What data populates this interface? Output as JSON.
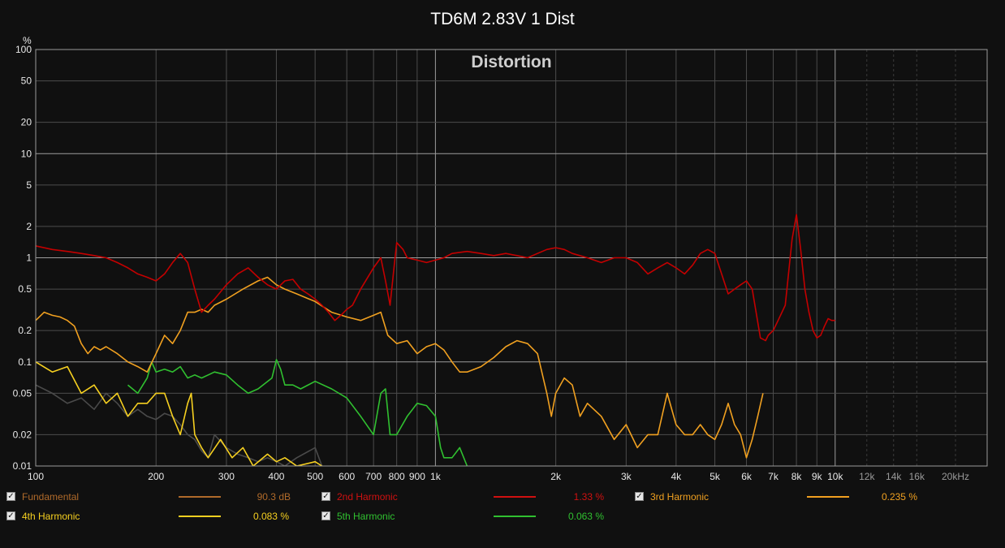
{
  "title": "TD6M 2.83V 1 Dist",
  "panel_label": "Distortion",
  "chart_data": {
    "type": "line",
    "title": "TD6M 2.83V 1 Dist",
    "ylabel": "%",
    "xscale": "log",
    "yscale": "log",
    "xlim": [
      100,
      24000
    ],
    "ylim": [
      0.01,
      100
    ],
    "grid": true,
    "y_ticks": [
      {
        "value": 100,
        "label": "100"
      },
      {
        "value": 50,
        "label": "50"
      },
      {
        "value": 20,
        "label": "20"
      },
      {
        "value": 10,
        "label": "10"
      },
      {
        "value": 5,
        "label": "5"
      },
      {
        "value": 2,
        "label": "2"
      },
      {
        "value": 1,
        "label": "1"
      },
      {
        "value": 0.5,
        "label": "0.5"
      },
      {
        "value": 0.2,
        "label": "0.2"
      },
      {
        "value": 0.1,
        "label": "0.1"
      },
      {
        "value": 0.05,
        "label": "0.05"
      },
      {
        "value": 0.02,
        "label": "0.02"
      },
      {
        "value": 0.01,
        "label": "0.01"
      }
    ],
    "x_ticks": [
      {
        "value": 100,
        "label": "100"
      },
      {
        "value": 200,
        "label": "200"
      },
      {
        "value": 300,
        "label": "300"
      },
      {
        "value": 400,
        "label": "400"
      },
      {
        "value": 500,
        "label": "500"
      },
      {
        "value": 600,
        "label": "600"
      },
      {
        "value": 700,
        "label": "700"
      },
      {
        "value": 800,
        "label": "800"
      },
      {
        "value": 900,
        "label": "900"
      },
      {
        "value": 1000,
        "label": "1k"
      },
      {
        "value": 2000,
        "label": "2k"
      },
      {
        "value": 3000,
        "label": "3k"
      },
      {
        "value": 4000,
        "label": "4k"
      },
      {
        "value": 5000,
        "label": "5k"
      },
      {
        "value": 6000,
        "label": "6k"
      },
      {
        "value": 7000,
        "label": "7k"
      },
      {
        "value": 8000,
        "label": "8k"
      },
      {
        "value": 9000,
        "label": "9k"
      },
      {
        "value": 10000,
        "label": "10k"
      },
      {
        "value": 12000,
        "label": "12k"
      },
      {
        "value": 14000,
        "label": "14k"
      },
      {
        "value": 16000,
        "label": "16k"
      },
      {
        "value": 20000,
        "label": "20kHz"
      }
    ],
    "series": [
      {
        "name": "2nd Harmonic",
        "color": "#c40000",
        "x": [
          100,
          110,
          120,
          130,
          140,
          150,
          160,
          170,
          180,
          190,
          200,
          210,
          220,
          230,
          240,
          250,
          260,
          270,
          280,
          300,
          320,
          340,
          360,
          380,
          400,
          420,
          440,
          460,
          480,
          500,
          520,
          540,
          560,
          580,
          600,
          620,
          650,
          700,
          730,
          750,
          770,
          790,
          800,
          830,
          850,
          900,
          950,
          1000,
          1050,
          1100,
          1200,
          1300,
          1400,
          1500,
          1600,
          1700,
          1800,
          1900,
          2000,
          2100,
          2200,
          2400,
          2600,
          2800,
          3000,
          3200,
          3400,
          3600,
          3800,
          4000,
          4200,
          4400,
          4600,
          4800,
          5000,
          5200,
          5400,
          5600,
          5800,
          6000,
          6200,
          6500,
          6700,
          6800,
          7000,
          7200,
          7500,
          7800,
          8000,
          8200,
          8400,
          8600,
          8800,
          9000,
          9200,
          9400,
          9600,
          9800,
          10000
        ],
        "y": [
          1.3,
          1.2,
          1.15,
          1.1,
          1.05,
          1.0,
          0.9,
          0.8,
          0.7,
          0.65,
          0.6,
          0.7,
          0.9,
          1.1,
          0.9,
          0.5,
          0.3,
          0.35,
          0.4,
          0.55,
          0.7,
          0.8,
          0.65,
          0.55,
          0.5,
          0.6,
          0.62,
          0.5,
          0.45,
          0.4,
          0.35,
          0.3,
          0.25,
          0.28,
          0.32,
          0.35,
          0.5,
          0.8,
          1.0,
          0.6,
          0.35,
          0.9,
          1.4,
          1.2,
          1.0,
          0.95,
          0.9,
          0.95,
          1.0,
          1.1,
          1.15,
          1.1,
          1.05,
          1.1,
          1.05,
          1.0,
          1.1,
          1.2,
          1.25,
          1.2,
          1.1,
          1.0,
          0.9,
          1.0,
          1.0,
          0.9,
          0.7,
          0.8,
          0.9,
          0.8,
          0.7,
          0.85,
          1.1,
          1.2,
          1.1,
          0.7,
          0.45,
          0.5,
          0.55,
          0.6,
          0.5,
          0.17,
          0.16,
          0.18,
          0.2,
          0.25,
          0.35,
          1.5,
          2.6,
          1.2,
          0.5,
          0.3,
          0.2,
          0.17,
          0.18,
          0.22,
          0.26,
          0.25,
          0.25
        ]
      },
      {
        "name": "3rd Harmonic",
        "color": "#f0a020",
        "x": [
          100,
          105,
          110,
          115,
          120,
          125,
          130,
          135,
          140,
          145,
          150,
          160,
          170,
          180,
          190,
          200,
          210,
          220,
          230,
          240,
          250,
          260,
          270,
          280,
          300,
          330,
          360,
          380,
          400,
          420,
          450,
          500,
          550,
          600,
          650,
          700,
          730,
          760,
          800,
          850,
          900,
          950,
          1000,
          1050,
          1100,
          1150,
          1200,
          1300,
          1400,
          1500,
          1600,
          1700,
          1800,
          1900,
          1950,
          2000,
          2100,
          2200,
          2300,
          2400,
          2600,
          2800,
          3000,
          3200,
          3400,
          3600,
          3800,
          4000,
          4200,
          4400,
          4600,
          4800,
          5000,
          5200,
          5400,
          5600,
          5800,
          6000,
          6200,
          6400,
          6600
        ],
        "y": [
          0.25,
          0.3,
          0.28,
          0.27,
          0.25,
          0.22,
          0.15,
          0.12,
          0.14,
          0.13,
          0.14,
          0.12,
          0.1,
          0.09,
          0.08,
          0.12,
          0.18,
          0.15,
          0.2,
          0.3,
          0.3,
          0.32,
          0.3,
          0.35,
          0.4,
          0.5,
          0.6,
          0.65,
          0.55,
          0.5,
          0.45,
          0.38,
          0.3,
          0.27,
          0.25,
          0.28,
          0.3,
          0.18,
          0.15,
          0.16,
          0.12,
          0.14,
          0.15,
          0.13,
          0.1,
          0.08,
          0.08,
          0.09,
          0.11,
          0.14,
          0.16,
          0.15,
          0.12,
          0.05,
          0.03,
          0.05,
          0.07,
          0.06,
          0.03,
          0.04,
          0.03,
          0.018,
          0.025,
          0.015,
          0.02,
          0.02,
          0.05,
          0.025,
          0.02,
          0.02,
          0.025,
          0.02,
          0.018,
          0.025,
          0.04,
          0.025,
          0.02,
          0.012,
          0.018,
          0.03,
          0.05
        ]
      },
      {
        "name": "4th Harmonic",
        "color": "#f6d020",
        "x": [
          100,
          110,
          120,
          130,
          140,
          150,
          160,
          170,
          180,
          190,
          200,
          210,
          220,
          230,
          240,
          245,
          250,
          260,
          270,
          290,
          310,
          330,
          350,
          380,
          400,
          420,
          450,
          500,
          520
        ],
        "y": [
          0.1,
          0.08,
          0.09,
          0.05,
          0.06,
          0.04,
          0.05,
          0.03,
          0.04,
          0.04,
          0.05,
          0.05,
          0.03,
          0.02,
          0.04,
          0.05,
          0.02,
          0.015,
          0.012,
          0.018,
          0.012,
          0.015,
          0.01,
          0.013,
          0.011,
          0.012,
          0.01,
          0.011,
          0.01
        ]
      },
      {
        "name": "5th Harmonic",
        "color": "#30c030",
        "x": [
          170,
          180,
          190,
          195,
          200,
          210,
          220,
          230,
          240,
          250,
          260,
          280,
          300,
          320,
          340,
          360,
          390,
          400,
          410,
          420,
          440,
          460,
          500,
          550,
          600,
          650,
          700,
          730,
          750,
          770,
          800,
          850,
          900,
          950,
          1000,
          1030,
          1050,
          1100,
          1150,
          1200
        ],
        "y": [
          0.06,
          0.05,
          0.07,
          0.1,
          0.08,
          0.085,
          0.08,
          0.09,
          0.07,
          0.075,
          0.07,
          0.08,
          0.075,
          0.06,
          0.05,
          0.055,
          0.07,
          0.105,
          0.085,
          0.06,
          0.06,
          0.055,
          0.065,
          0.055,
          0.045,
          0.03,
          0.02,
          0.05,
          0.055,
          0.02,
          0.02,
          0.03,
          0.04,
          0.038,
          0.03,
          0.015,
          0.012,
          0.012,
          0.015,
          0.01
        ]
      },
      {
        "name": "Fundamental trace",
        "color": "#4a4a4a",
        "x": [
          100,
          110,
          120,
          130,
          140,
          150,
          160,
          170,
          180,
          190,
          200,
          210,
          220,
          230,
          240,
          250,
          260,
          270,
          280,
          300,
          320,
          340,
          360,
          380,
          400,
          420,
          450,
          500,
          520
        ],
        "y": [
          0.06,
          0.05,
          0.04,
          0.045,
          0.035,
          0.05,
          0.04,
          0.03,
          0.035,
          0.03,
          0.028,
          0.032,
          0.03,
          0.025,
          0.02,
          0.018,
          0.014,
          0.012,
          0.02,
          0.015,
          0.013,
          0.012,
          0.011,
          0.012,
          0.011,
          0.01,
          0.012,
          0.015,
          0.01
        ]
      }
    ]
  },
  "legend": [
    {
      "name": "Fundamental",
      "value": "90.3 dB",
      "color": "#b06a2a",
      "checked": true
    },
    {
      "name": "2nd Harmonic",
      "value": "1.33 %",
      "color": "#d01010",
      "checked": true
    },
    {
      "name": "3rd Harmonic",
      "value": "0.235 %",
      "color": "#f0a020",
      "checked": true
    },
    {
      "name": "4th Harmonic",
      "value": "0.083 %",
      "color": "#f6d020",
      "checked": true
    },
    {
      "name": "5th Harmonic",
      "value": "0.063 %",
      "color": "#30c030",
      "checked": true
    }
  ]
}
